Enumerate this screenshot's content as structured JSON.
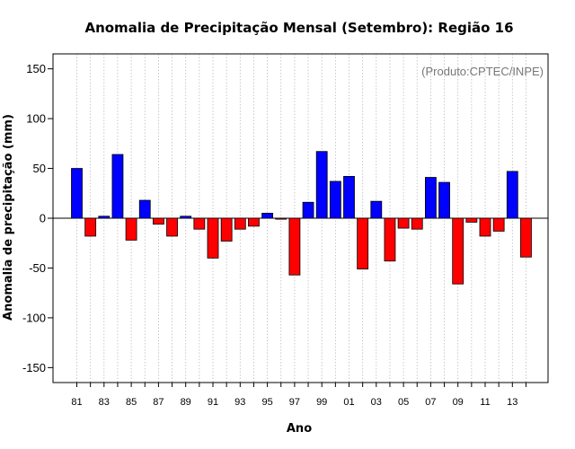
{
  "chart_data": {
    "type": "bar",
    "title": "Anomalia de Precipitação Mensal (Setembro): Região 16",
    "xlabel": "Ano",
    "ylabel": "Anomalia de precipitação (mm)",
    "annotation": "(Produto:CPTEC/INPE)",
    "ylim": [
      -165,
      165
    ],
    "yticks": [
      -150,
      -100,
      -50,
      0,
      50,
      100,
      150
    ],
    "categories": [
      "1981",
      "1982",
      "1983",
      "1984",
      "1985",
      "1986",
      "1987",
      "1988",
      "1989",
      "1990",
      "1991",
      "1992",
      "1993",
      "1994",
      "1995",
      "1996",
      "1997",
      "1998",
      "1999",
      "2000",
      "2001",
      "2002",
      "2003",
      "2004",
      "2005",
      "2006",
      "2007",
      "2008",
      "2009",
      "2010",
      "2011",
      "2012",
      "2013",
      "2014"
    ],
    "xtick_labels": [
      "81",
      "83",
      "85",
      "87",
      "89",
      "91",
      "93",
      "95",
      "97",
      "99",
      "01",
      "03",
      "05",
      "07",
      "09",
      "11",
      "13"
    ],
    "values": [
      50,
      -18,
      2,
      64,
      -22,
      18,
      -6,
      -18,
      2,
      -11,
      -40,
      -23,
      -11,
      -8,
      5,
      -1,
      -57,
      16,
      67,
      37,
      42,
      -51,
      17,
      -43,
      -10,
      -11,
      41,
      36,
      -66,
      -4,
      -18,
      -13,
      47,
      -39
    ],
    "positive_color": "#0000ff",
    "negative_color": "#ff0000",
    "grid": "vertical-dotted",
    "zero_line": true
  }
}
